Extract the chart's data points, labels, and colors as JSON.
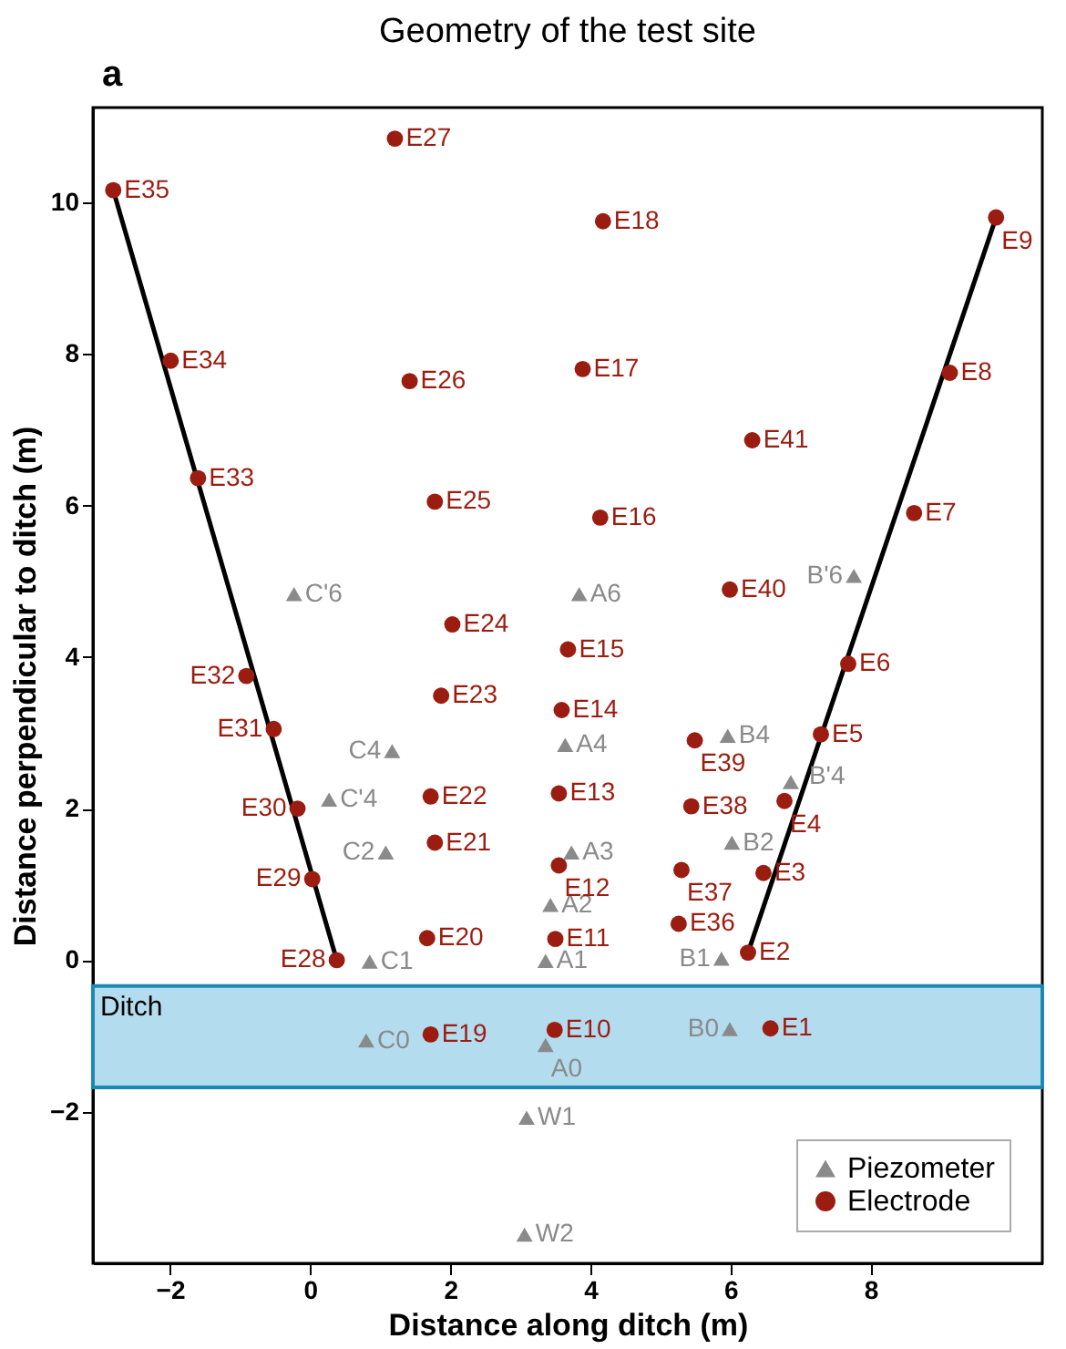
{
  "chart_data": {
    "type": "scatter",
    "title": "Geometry of the test site",
    "xlabel": "Distance along ditch (m)",
    "ylabel": "Distance perpendicular to ditch (m)",
    "xlim": [
      -3.1,
      10.45
    ],
    "xticks": [
      -2,
      0,
      2,
      4,
      6,
      8
    ],
    "ylim": [
      -4,
      11.25
    ],
    "yticks": [
      -2,
      0,
      2,
      4,
      6,
      8,
      10
    ],
    "grid": false,
    "legend": "bottom right",
    "annotations": [
      "a",
      {
        "text": "A0",
        "x": 3.36,
        "y": -1.12
      },
      {
        "text": "A1",
        "x": 3.36,
        "y": -0.01
      },
      {
        "text": "A2",
        "x": 3.43,
        "y": 0.73
      },
      {
        "text": "A3",
        "x": 3.73,
        "y": 1.42
      },
      {
        "text": "A4",
        "x": 3.64,
        "y": 2.84
      },
      {
        "text": "A6",
        "x": 3.84,
        "y": 4.83
      },
      {
        "text": "B0",
        "x": 5.99,
        "y": -0.91
      },
      {
        "text": "B1",
        "x": 5.87,
        "y": 0.02
      },
      {
        "text": "B2",
        "x": 6.02,
        "y": 1.55
      },
      {
        "text": "B4",
        "x": 5.96,
        "y": 2.96
      },
      {
        "text": "B'4",
        "x": 6.86,
        "y": 2.35
      },
      {
        "text": "B'6",
        "x": 7.76,
        "y": 5.07
      },
      {
        "text": "C0",
        "x": 0.8,
        "y": -1.06
      },
      {
        "text": "C1",
        "x": 0.85,
        "y": -0.02
      },
      {
        "text": "C2",
        "x": 1.08,
        "y": 1.42
      },
      {
        "text": "C4",
        "x": 1.17,
        "y": 2.76
      },
      {
        "text": "C'4",
        "x": 0.27,
        "y": 2.12
      },
      {
        "text": "C'6",
        "x": -0.23,
        "y": 4.83
      },
      {
        "text": "W1",
        "x": 3.09,
        "y": -2.08
      },
      {
        "text": "W2",
        "x": 3.06,
        "y": -3.62
      },
      {
        "text": "E1",
        "x": 6.57,
        "y": -0.9
      },
      {
        "text": "E2",
        "x": 6.25,
        "y": 0.1
      },
      {
        "text": "E3",
        "x": 6.47,
        "y": 1.15
      },
      {
        "text": "E4",
        "x": 6.77,
        "y": 2.1
      },
      {
        "text": "E5",
        "x": 7.29,
        "y": 2.98
      },
      {
        "text": "E6",
        "x": 7.68,
        "y": 3.91
      },
      {
        "text": "E7",
        "x": 8.62,
        "y": 5.9
      },
      {
        "text": "E8",
        "x": 9.13,
        "y": 7.75
      },
      {
        "text": "E9",
        "x": 9.79,
        "y": 9.8
      },
      {
        "text": "E10",
        "x": 3.49,
        "y": -0.92
      },
      {
        "text": "E11",
        "x": 3.5,
        "y": 0.28
      },
      {
        "text": "E12",
        "x": 3.55,
        "y": 1.25
      },
      {
        "text": "E13",
        "x": 3.55,
        "y": 2.2
      },
      {
        "text": "E14",
        "x": 3.59,
        "y": 3.3
      },
      {
        "text": "E15",
        "x": 3.68,
        "y": 4.1
      },
      {
        "text": "E16",
        "x": 4.14,
        "y": 5.84
      },
      {
        "text": "E17",
        "x": 3.89,
        "y": 7.8
      },
      {
        "text": "E18",
        "x": 4.18,
        "y": 9.75
      },
      {
        "text": "E19",
        "x": 1.72,
        "y": -0.98
      },
      {
        "text": "E20",
        "x": 1.67,
        "y": 0.29
      },
      {
        "text": "E21",
        "x": 1.78,
        "y": 1.55
      },
      {
        "text": "E22",
        "x": 1.72,
        "y": 2.16
      },
      {
        "text": "E23",
        "x": 1.87,
        "y": 3.49
      },
      {
        "text": "E24",
        "x": 2.03,
        "y": 4.43
      },
      {
        "text": "E25",
        "x": 1.78,
        "y": 6.05
      },
      {
        "text": "E26",
        "x": 1.42,
        "y": 7.64
      },
      {
        "text": "E27",
        "x": 1.21,
        "y": 10.84
      },
      {
        "text": "E28",
        "x": 0.38,
        "y": 0.0
      },
      {
        "text": "E29",
        "x": 0.03,
        "y": 1.07
      },
      {
        "text": "E30",
        "x": -0.18,
        "y": 2.0
      },
      {
        "text": "E31",
        "x": -0.52,
        "y": 3.05
      },
      {
        "text": "E32",
        "x": -0.91,
        "y": 3.75
      },
      {
        "text": "E33",
        "x": -1.6,
        "y": 6.36
      },
      {
        "text": "E34",
        "x": -1.99,
        "y": 7.91
      },
      {
        "text": "E35",
        "x": -2.81,
        "y": 10.16
      },
      {
        "text": "E36",
        "x": 5.26,
        "y": 0.48
      },
      {
        "text": "E37",
        "x": 5.3,
        "y": 1.19
      },
      {
        "text": "E38",
        "x": 5.44,
        "y": 2.03
      },
      {
        "text": "E39",
        "x": 5.49,
        "y": 2.9
      },
      {
        "text": "E40",
        "x": 5.99,
        "y": 4.89
      },
      {
        "text": "E41",
        "x": 6.31,
        "y": 6.86
      }
    ],
    "bands": [
      {
        "axis": "y",
        "from": -1.68,
        "to": -0.34,
        "label": "Ditch",
        "color": "#b3dcef"
      }
    ],
    "series": [
      {
        "name": "Piezometer",
        "marker": "triangle",
        "color": "#8a8a8a",
        "x": [
          3.36,
          3.36,
          3.43,
          3.73,
          3.64,
          3.84,
          5.99,
          5.87,
          6.02,
          5.96,
          6.86,
          7.76,
          0.8,
          0.85,
          1.08,
          1.17,
          0.27,
          -0.23,
          3.09,
          3.06
        ],
        "values": [
          -1.12,
          -0.01,
          0.73,
          1.42,
          2.84,
          4.83,
          -0.91,
          0.02,
          1.55,
          2.96,
          2.35,
          5.07,
          -1.06,
          -0.02,
          1.42,
          2.76,
          2.12,
          4.83,
          -2.08,
          -3.62
        ]
      },
      {
        "name": "Electrode",
        "marker": "circle",
        "color": "#9b1c10",
        "x": [
          6.57,
          6.25,
          6.47,
          6.77,
          7.29,
          7.68,
          8.62,
          9.13,
          9.79,
          3.49,
          3.5,
          3.55,
          3.55,
          3.59,
          3.68,
          4.14,
          3.89,
          4.18,
          1.72,
          1.67,
          1.78,
          1.72,
          1.87,
          2.03,
          1.78,
          1.42,
          1.21,
          0.38,
          0.03,
          -0.18,
          -0.52,
          -0.91,
          -1.6,
          -1.99,
          -2.81,
          5.26,
          5.3,
          5.44,
          5.49,
          5.99,
          6.31
        ],
        "values": [
          -0.9,
          0.1,
          1.15,
          2.1,
          2.98,
          3.91,
          5.9,
          7.75,
          9.8,
          -0.92,
          0.28,
          1.25,
          2.2,
          3.3,
          4.1,
          5.84,
          7.8,
          9.75,
          -0.98,
          0.29,
          1.55,
          2.16,
          3.49,
          4.43,
          6.05,
          7.64,
          10.84,
          0.0,
          1.07,
          2.0,
          3.05,
          3.75,
          6.36,
          7.91,
          10.16,
          0.48,
          1.19,
          2.03,
          2.9,
          4.89,
          6.86
        ]
      },
      {
        "type": "line",
        "color": "#000000",
        "x": [
          -2.81,
          0.38
        ],
        "values": [
          10.16,
          0.0
        ]
      },
      {
        "type": "line",
        "color": "#000000",
        "x": [
          6.25,
          9.79
        ],
        "values": [
          0.1,
          9.8
        ]
      }
    ]
  }
}
